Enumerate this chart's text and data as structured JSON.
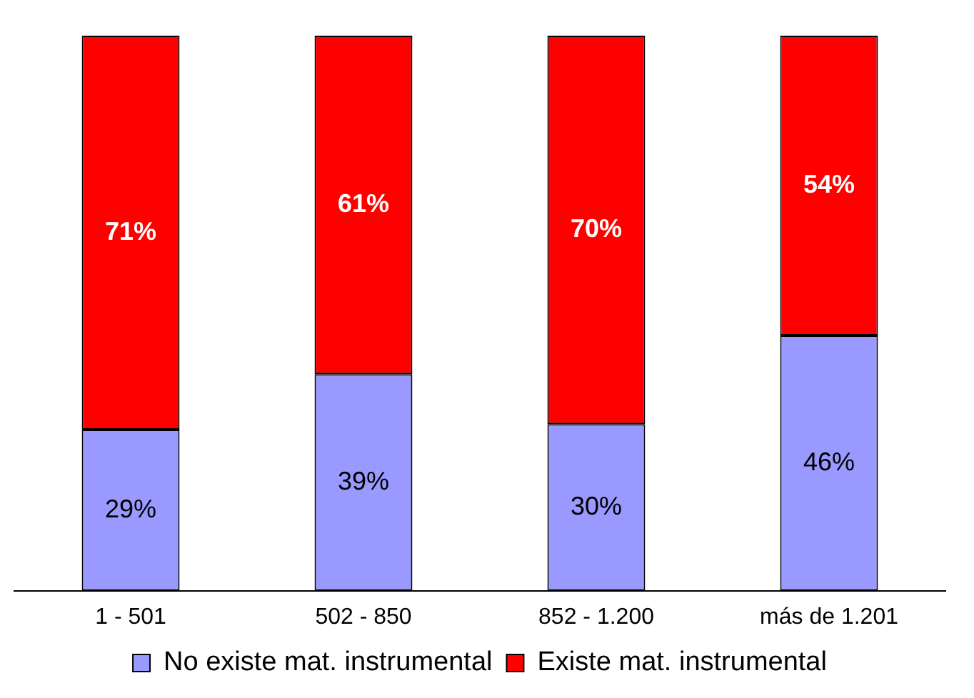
{
  "chart_data": {
    "type": "bar",
    "stacked": true,
    "legend": "bottom",
    "categories": [
      "1 - 501",
      "502 - 850",
      "852 - 1.200",
      "más de 1.201"
    ],
    "series": [
      {
        "name": "No existe mat. instrumental",
        "color": "#9999ff",
        "values": [
          29,
          39,
          30,
          46
        ],
        "value_labels": [
          "29%",
          "39%",
          "30%",
          "46%"
        ]
      },
      {
        "name": "Existe mat. instrumental",
        "color": "#ff0000",
        "values": [
          71,
          61,
          70,
          54
        ],
        "value_labels": [
          "71%",
          "61%",
          "70%",
          "54%"
        ]
      }
    ]
  }
}
